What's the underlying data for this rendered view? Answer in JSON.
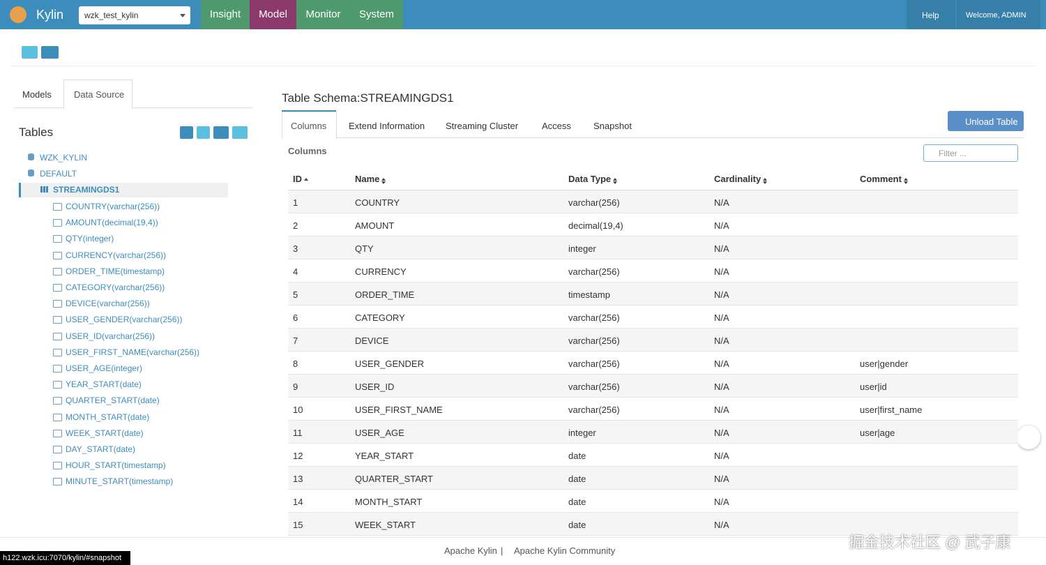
{
  "navbar": {
    "brand": "Kylin",
    "project": "wzk_test_kylin",
    "menu": [
      "Insight",
      "Model",
      "Monitor",
      "System"
    ],
    "help": "Help",
    "welcome": "Welcome, ADMIN"
  },
  "sidebar": {
    "tabs": [
      "Models",
      "Data Source"
    ],
    "heading": "Tables",
    "databases": [
      "WZK_KYLIN",
      "DEFAULT"
    ],
    "table": "STREAMINGDS1",
    "columns": [
      "COUNTRY(varchar(256))",
      "AMOUNT(decimal(19,4))",
      "QTY(integer)",
      "CURRENCY(varchar(256))",
      "ORDER_TIME(timestamp)",
      "CATEGORY(varchar(256))",
      "DEVICE(varchar(256))",
      "USER_GENDER(varchar(256))",
      "USER_ID(varchar(256))",
      "USER_FIRST_NAME(varchar(256))",
      "USER_AGE(integer)",
      "YEAR_START(date)",
      "QUARTER_START(date)",
      "MONTH_START(date)",
      "WEEK_START(date)",
      "DAY_START(date)",
      "HOUR_START(timestamp)",
      "MINUTE_START(timestamp)"
    ]
  },
  "main": {
    "title": "Table Schema:STREAMINGDS1",
    "tabs": [
      "Columns",
      "Extend Information",
      "Streaming Cluster",
      "Access",
      "Snapshot"
    ],
    "unload": "Unload Table",
    "section": "Columns",
    "filter": "Filter ...",
    "table": {
      "headers": [
        "ID",
        "Name",
        "Data Type",
        "Cardinality",
        "Comment"
      ],
      "rows": [
        [
          1,
          "COUNTRY",
          "varchar(256)",
          "N/A"
        ],
        [
          2,
          "AMOUNT",
          "decimal(19,4)",
          "N/A"
        ],
        [
          3,
          "QTY",
          "integer",
          "N/A"
        ],
        [
          4,
          "CURRENCY",
          "varchar(256)",
          "N/A"
        ],
        [
          5,
          "ORDER_TIME",
          "timestamp",
          "N/A"
        ],
        [
          6,
          "CATEGORY",
          "varchar(256)",
          "N/A"
        ],
        [
          7,
          "DEVICE",
          "varchar(256)",
          "N/A"
        ],
        [
          8,
          "USER_GENDER",
          "varchar(256)",
          "N/A",
          "user|gender"
        ],
        [
          9,
          "USER_ID",
          "varchar(256)",
          "N/A",
          "user|id"
        ],
        [
          10,
          "USER_FIRST_NAME",
          "varchar(256)",
          "N/A",
          "user|first_name"
        ],
        [
          11,
          "USER_AGE",
          "integer",
          "N/A",
          "user|age"
        ],
        [
          12,
          "YEAR_START",
          "date",
          "N/A"
        ],
        [
          13,
          "QUARTER_START",
          "date",
          "N/A"
        ],
        [
          14,
          "MONTH_START",
          "date",
          "N/A"
        ],
        [
          15,
          "WEEK_START",
          "date",
          "N/A"
        ]
      ]
    }
  },
  "footer": {
    "links": [
      "Apache Kylin",
      "Apache Kylin Community"
    ],
    "separator": "|"
  },
  "status_url": "h122.wzk.icu:7070/kylin/#snapshot",
  "watermark": "掘金技术社区 @ 武子康"
}
